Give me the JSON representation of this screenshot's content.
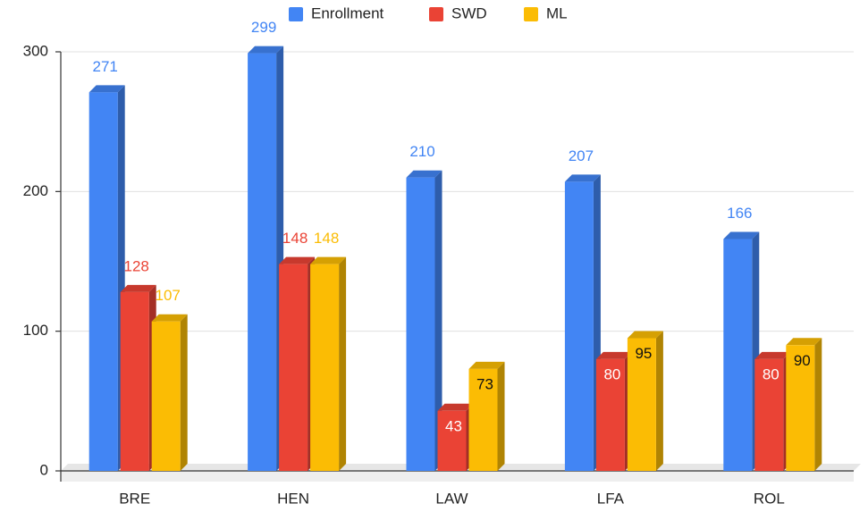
{
  "chart_data": {
    "type": "bar3d",
    "categories": [
      "BRE",
      "HEN",
      "LAW",
      "LFA",
      "ROL"
    ],
    "series": [
      {
        "name": "Enrollment",
        "color": "#4285f4",
        "values": [
          271,
          299,
          210,
          207,
          166
        ]
      },
      {
        "name": "SWD",
        "color": "#ea4335",
        "values": [
          128,
          148,
          43,
          80,
          80
        ]
      },
      {
        "name": "ML",
        "color": "#fbbc04",
        "values": [
          107,
          148,
          73,
          95,
          90
        ]
      }
    ],
    "ylim": [
      0,
      300
    ],
    "yticks": [
      0,
      100,
      200,
      300
    ],
    "grid": true,
    "legend": "top"
  }
}
